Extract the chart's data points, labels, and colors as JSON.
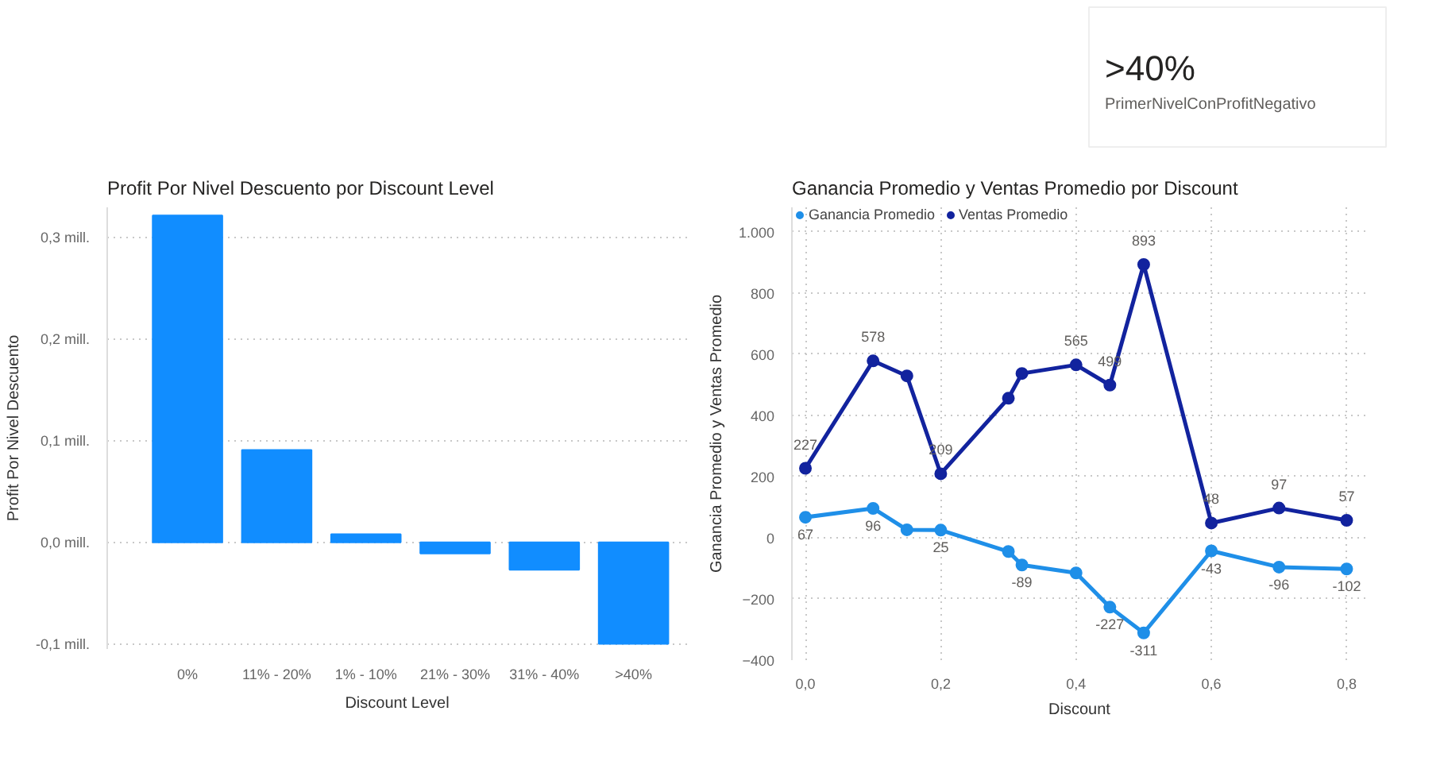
{
  "chart_data": [
    {
      "type": "other",
      "title": ">40%",
      "subtitle": "PrimerNivelConProfitNegativo"
    },
    {
      "type": "bar",
      "title": "Profit Por Nivel Descuento por Discount Level",
      "xlabel": "Discount Level",
      "ylabel": "Profit Por Nivel Descuento",
      "categories": [
        "0%",
        "11% - 20%",
        "1% - 10%",
        "21% - 30%",
        "31% - 40%",
        ">40%"
      ],
      "values": [
        0.322,
        0.091,
        0.008,
        -0.011,
        -0.027,
        -0.1
      ],
      "color": "#118dff",
      "ylim": [
        -0.105,
        0.33
      ],
      "yticks": [
        {
          "value": -0.1,
          "label": "-0,1 mill."
        },
        {
          "value": 0,
          "label": "0,0 mill."
        },
        {
          "value": 0.1,
          "label": "0,1 mill."
        },
        {
          "value": 0.2,
          "label": "0,2 mill."
        },
        {
          "value": 0.3,
          "label": "0,3 mill."
        }
      ],
      "grid": "y"
    },
    {
      "type": "line",
      "title": "Ganancia Promedio y Ventas Promedio por Discount",
      "xlabel": "Discount",
      "ylabel": "Ganancia Promedio y Ventas Promedio",
      "x": [
        0,
        0.1,
        0.15,
        0.2,
        0.3,
        0.32,
        0.4,
        0.45,
        0.5,
        0.6,
        0.7,
        0.8
      ],
      "series": [
        {
          "name": "Ganancia Promedio",
          "color": "#1f8fe8",
          "values": [
            67,
            96,
            26,
            25,
            -45,
            -89,
            -115,
            -227,
            -311,
            -43,
            -96,
            -102
          ],
          "value_labels": [
            "67",
            "96",
            null,
            "25",
            null,
            "-89",
            null,
            "-227",
            "-311",
            "-43",
            "-96",
            "-102"
          ]
        },
        {
          "name": "Ventas Promedio",
          "color": "#12239e",
          "values": [
            227,
            578,
            529,
            209,
            456,
            537,
            565,
            499,
            893,
            48,
            97,
            57
          ],
          "value_labels": [
            "227",
            "578",
            null,
            "209",
            null,
            null,
            "565",
            "499",
            "893",
            "48",
            "97",
            "57"
          ]
        }
      ],
      "xlim": [
        -0.02,
        0.83
      ],
      "xticks": [
        {
          "value": 0,
          "label": "0,0"
        },
        {
          "value": 0.2,
          "label": "0,2"
        },
        {
          "value": 0.4,
          "label": "0,4"
        },
        {
          "value": 0.6,
          "label": "0,6"
        },
        {
          "value": 0.8,
          "label": "0,8"
        }
      ],
      "ylim": [
        -400,
        1080
      ],
      "yticks": [
        -400,
        -200,
        0,
        200,
        400,
        600,
        800,
        {
          "value": 1000,
          "label": "1.000"
        }
      ],
      "grid": true,
      "legend": "top left",
      "marker": "circle"
    }
  ]
}
